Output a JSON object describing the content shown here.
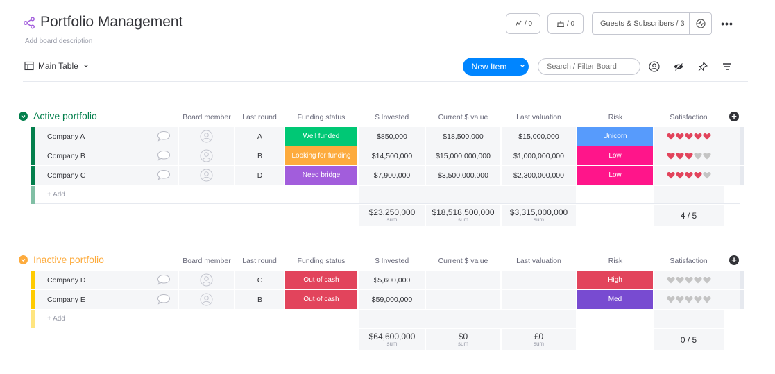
{
  "board": {
    "title": "Portfolio Management",
    "description": "Add board description",
    "view_label": "Main Table"
  },
  "header": {
    "activity_count": "/ 0",
    "integrations_count": "/ 0",
    "guests_label": "Guests & Subscribers / 3"
  },
  "toolbar": {
    "new_item": "New Item",
    "search_placeholder": "Search / Filter Board"
  },
  "columns": [
    "Board member",
    "Last round",
    "Funding status",
    "$ Invested",
    "Current $ value",
    "Last valuation",
    "Risk",
    "Satisfaction"
  ],
  "colors": {
    "active": "#037f4c",
    "active_toggle": "#00a359",
    "inactive": "#ffcb00",
    "inactive_title": "#fdab3d",
    "well_funded": "#00c875",
    "looking": "#fdab3d",
    "need_bridge": "#a25ddc",
    "out_of_cash": "#e2445c",
    "unicorn": "#579bfc",
    "low": "#ff158a",
    "high": "#e2445c",
    "med": "#784bd1",
    "heart_on": "#e2445c",
    "heart_off": "#c4c4c4"
  },
  "groups": [
    {
      "title": "Active portfolio",
      "add_label": "+ Add",
      "rows": [
        {
          "name": "Company A",
          "last_round": "A",
          "funding": "Well funded",
          "invested": "$850,000",
          "current": "$18,500,000",
          "valuation": "$15,000,000",
          "risk": "Unicorn",
          "rating": 5
        },
        {
          "name": "Company B",
          "last_round": "B",
          "funding": "Looking for funding",
          "invested": "$14,500,000",
          "current": "$15,000,000,000",
          "valuation": "$1,000,000,000",
          "risk": "Low",
          "rating": 3
        },
        {
          "name": "Company C",
          "last_round": "D",
          "funding": "Need bridge",
          "invested": "$7,900,000",
          "current": "$3,500,000,000",
          "valuation": "$2,300,000,000",
          "risk": "Low",
          "rating": 4
        }
      ],
      "sums": {
        "invested": "$23,250,000",
        "current": "$18,518,500,000",
        "valuation": "$3,315,000,000",
        "label": "sum",
        "satisfaction": "4 / 5"
      }
    },
    {
      "title": "Inactive portfolio",
      "add_label": "+ Add",
      "rows": [
        {
          "name": "Company D",
          "last_round": "C",
          "funding": "Out of cash",
          "invested": "$5,600,000",
          "current": "",
          "valuation": "",
          "risk": "High",
          "rating": 0
        },
        {
          "name": "Company E",
          "last_round": "B",
          "funding": "Out of cash",
          "invested": "$59,000,000",
          "current": "",
          "valuation": "",
          "risk": "Med",
          "rating": 0
        }
      ],
      "sums": {
        "invested": "$64,600,000",
        "current": "$0",
        "valuation": "£0",
        "label": "sum",
        "satisfaction": "0 / 5"
      }
    }
  ]
}
